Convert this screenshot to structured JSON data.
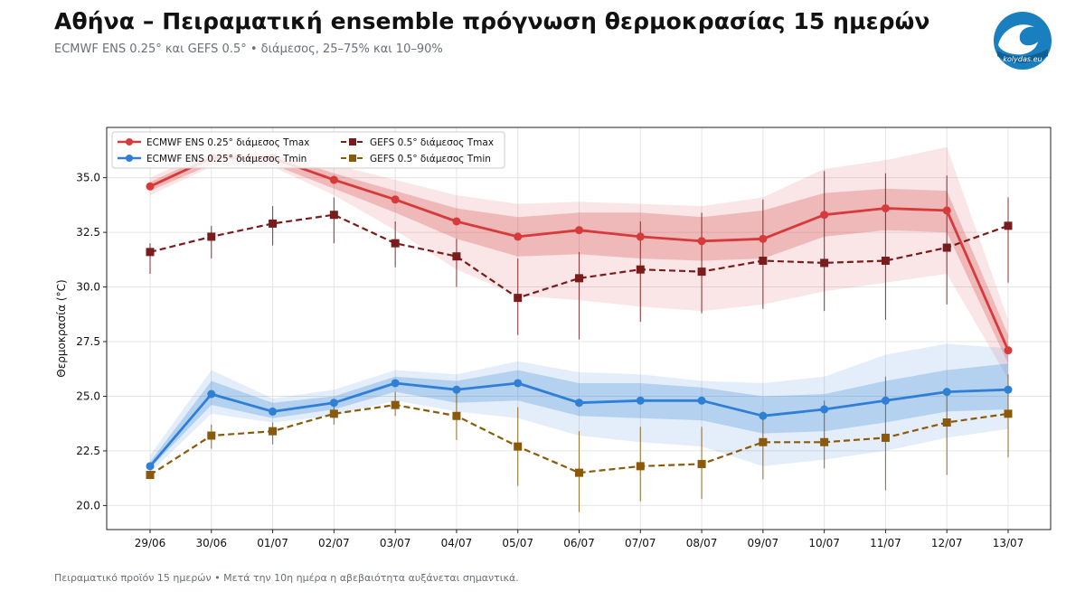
{
  "header": {
    "title": "Αθήνα – Πειραματική ensemble πρόγνωση θερμοκρασίας 15 ημερών",
    "subtitle": "ECMWF ENS 0.25° και GEFS 0.5° • διάμεσος, 25–75% και 10–90%"
  },
  "logo": {
    "text": "kolydas.eu",
    "icon": "wave-logo-icon",
    "color": "#1a7fbf"
  },
  "footer": {
    "note": "Πειραματικό προϊόν 15 ημερών • Μετά την 10η ημέρα η αβεβαιότητα αυξάνεται σημαντικά."
  },
  "chart_data": {
    "type": "line",
    "ylabel": "Θερμοκρασία (°C)",
    "xlabel": "",
    "ylim": [
      18.9,
      37.3
    ],
    "yticks": [
      20.0,
      22.5,
      25.0,
      27.5,
      30.0,
      32.5,
      35.0
    ],
    "ytick_labels": [
      "20.0",
      "22.5",
      "25.0",
      "27.5",
      "30.0",
      "32.5",
      "35.0"
    ],
    "grid": true,
    "legend_position": "top-left",
    "categories": [
      "29/06",
      "30/06",
      "01/07",
      "02/07",
      "03/07",
      "04/07",
      "05/07",
      "06/07",
      "07/07",
      "08/07",
      "09/07",
      "10/07",
      "11/07",
      "12/07",
      "13/07"
    ],
    "series": [
      {
        "name": "ECMWF ENS 0.25° διάμεσος Tmax",
        "color": "#d63a3a",
        "style": "solid",
        "marker": "circle",
        "values": [
          34.6,
          35.9,
          35.9,
          34.9,
          34.0,
          33.0,
          32.3,
          32.6,
          32.3,
          32.1,
          32.2,
          33.3,
          33.6,
          33.5,
          27.1
        ],
        "p25": [
          34.4,
          35.6,
          35.6,
          34.5,
          33.4,
          32.2,
          31.4,
          31.5,
          31.3,
          31.2,
          31.3,
          32.3,
          32.6,
          32.5,
          26.5
        ],
        "p75": [
          34.8,
          36.1,
          36.1,
          35.2,
          34.4,
          33.6,
          33.2,
          33.4,
          33.4,
          33.2,
          33.5,
          34.3,
          34.5,
          34.4,
          27.8
        ],
        "p10": [
          34.2,
          35.5,
          35.5,
          34.2,
          32.6,
          30.8,
          29.6,
          29.4,
          29.1,
          28.9,
          29.2,
          29.8,
          30.2,
          30.6,
          25.8
        ],
        "p90": [
          35.0,
          36.3,
          36.3,
          35.6,
          34.9,
          34.2,
          33.8,
          33.9,
          33.8,
          33.7,
          34.1,
          35.4,
          35.8,
          36.4,
          28.5
        ]
      },
      {
        "name": "ECMWF ENS 0.25° διάμεσος Tmin",
        "color": "#2f7fd6",
        "style": "solid",
        "marker": "circle",
        "values": [
          21.8,
          25.1,
          24.3,
          24.7,
          25.6,
          25.3,
          25.6,
          24.7,
          24.8,
          24.8,
          24.1,
          24.4,
          24.8,
          25.2,
          25.3
        ],
        "p25": [
          21.7,
          24.6,
          24.0,
          24.4,
          25.2,
          24.7,
          24.8,
          24.1,
          24.0,
          23.9,
          23.3,
          23.4,
          23.8,
          24.3,
          24.4
        ],
        "p75": [
          22.0,
          25.7,
          24.7,
          25.0,
          25.9,
          25.7,
          26.2,
          25.6,
          25.6,
          25.4,
          25.0,
          25.1,
          25.7,
          26.2,
          26.5
        ],
        "p10": [
          21.5,
          24.2,
          23.8,
          24.1,
          24.8,
          24.3,
          24.0,
          23.2,
          22.9,
          22.7,
          21.8,
          22.1,
          22.5,
          23.1,
          23.5
        ],
        "p90": [
          22.3,
          26.2,
          24.9,
          25.3,
          26.2,
          26.0,
          26.6,
          26.1,
          26.0,
          25.7,
          25.6,
          25.9,
          26.9,
          27.4,
          27.2
        ]
      },
      {
        "name": "GEFS 0.5° διάμεσος Tmax",
        "color": "#7b1c1c",
        "style": "dashed",
        "marker": "square",
        "values": [
          31.6,
          32.3,
          32.9,
          33.3,
          32.0,
          31.4,
          29.5,
          30.4,
          30.8,
          30.7,
          31.2,
          31.1,
          31.2,
          31.8,
          32.8
        ],
        "low": [
          30.6,
          31.3,
          31.9,
          32.0,
          30.9,
          30.0,
          27.8,
          27.6,
          28.4,
          28.8,
          29.0,
          28.9,
          28.5,
          29.2,
          30.2
        ],
        "high": [
          32.0,
          32.8,
          33.7,
          34.1,
          33.0,
          32.2,
          31.3,
          31.6,
          33.0,
          33.4,
          34.0,
          35.3,
          35.2,
          35.1,
          34.1
        ]
      },
      {
        "name": "GEFS 0.5° διάμεσος Tmin",
        "color": "#8a5a0a",
        "style": "dashed",
        "marker": "square",
        "values": [
          21.4,
          23.2,
          23.4,
          24.2,
          24.6,
          24.1,
          22.7,
          21.5,
          21.8,
          21.9,
          22.9,
          22.9,
          23.1,
          23.8,
          24.2
        ],
        "low": [
          21.3,
          22.6,
          22.8,
          23.7,
          24.1,
          23.0,
          20.9,
          19.7,
          20.2,
          20.3,
          21.2,
          21.7,
          20.7,
          21.4,
          22.2
        ],
        "high": [
          21.6,
          23.7,
          23.8,
          24.6,
          25.2,
          25.3,
          24.5,
          23.4,
          23.6,
          23.6,
          24.3,
          24.8,
          25.9,
          25.3,
          26.0
        ]
      }
    ]
  }
}
